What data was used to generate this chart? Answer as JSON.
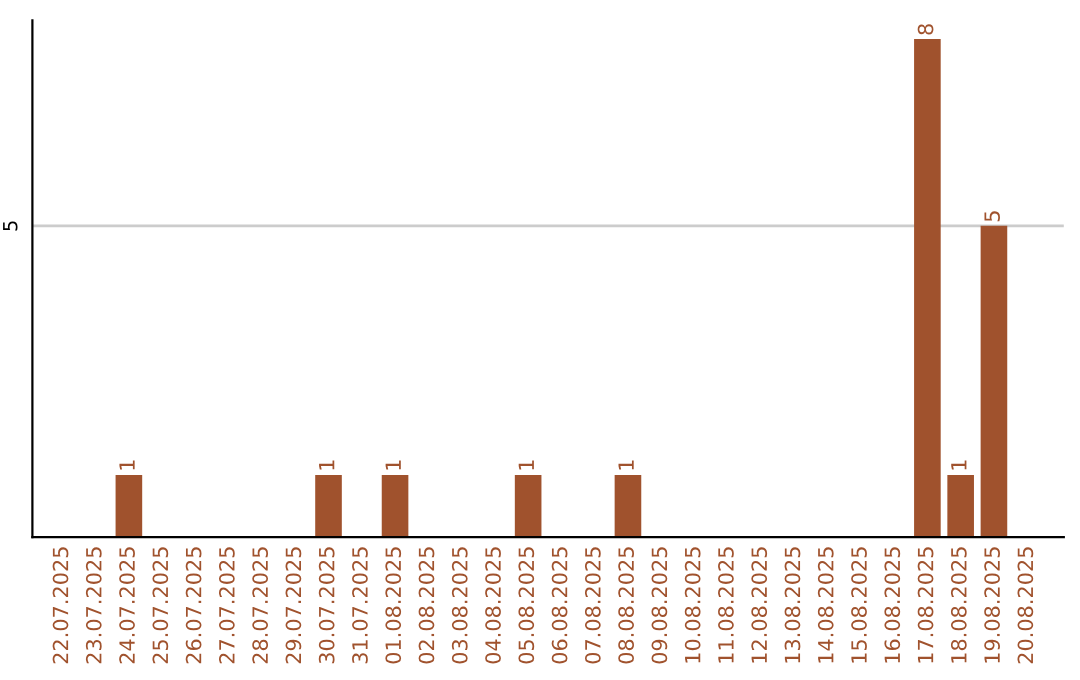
{
  "chart_data": {
    "type": "bar",
    "categories": [
      "22.07.2025",
      "23.07.2025",
      "24.07.2025",
      "25.07.2025",
      "26.07.2025",
      "27.07.2025",
      "28.07.2025",
      "29.07.2025",
      "30.07.2025",
      "31.07.2025",
      "01.08.2025",
      "02.08.2025",
      "03.08.2025",
      "04.08.2025",
      "05.08.2025",
      "06.08.2025",
      "07.08.2025",
      "08.08.2025",
      "09.08.2025",
      "10.08.2025",
      "11.08.2025",
      "12.08.2025",
      "13.08.2025",
      "14.08.2025",
      "15.08.2025",
      "16.08.2025",
      "17.08.2025",
      "18.08.2025",
      "19.08.2025",
      "20.08.2025"
    ],
    "values": [
      0,
      0,
      1,
      0,
      0,
      0,
      0,
      0,
      1,
      0,
      1,
      0,
      0,
      0,
      1,
      0,
      0,
      1,
      0,
      0,
      0,
      0,
      0,
      0,
      0,
      0,
      8,
      1,
      5,
      0
    ],
    "color": "#a0522d",
    "value_labels": [
      null,
      null,
      "1",
      null,
      null,
      null,
      null,
      null,
      "1",
      null,
      "1",
      null,
      null,
      null,
      "1",
      null,
      null,
      "1",
      null,
      null,
      null,
      null,
      null,
      null,
      null,
      null,
      "8",
      "1",
      "5",
      null
    ],
    "ylim": [
      0,
      8.3
    ],
    "yticks": [
      5
    ],
    "grid": "y",
    "legend": false
  }
}
